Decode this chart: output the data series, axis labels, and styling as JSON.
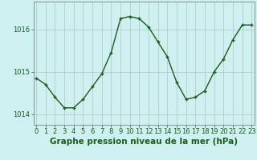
{
  "x": [
    0,
    1,
    2,
    3,
    4,
    5,
    6,
    7,
    8,
    9,
    10,
    11,
    12,
    13,
    14,
    15,
    16,
    17,
    18,
    19,
    20,
    21,
    22,
    23
  ],
  "y": [
    1014.85,
    1014.7,
    1014.4,
    1014.15,
    1014.15,
    1014.35,
    1014.65,
    1014.95,
    1015.45,
    1016.25,
    1016.3,
    1016.25,
    1016.05,
    1015.7,
    1015.35,
    1014.75,
    1014.35,
    1014.4,
    1014.55,
    1015.0,
    1015.3,
    1015.75,
    1016.1,
    1016.1
  ],
  "line_color": "#1a5c1a",
  "marker": "+",
  "marker_size": 3,
  "marker_lw": 1.0,
  "line_width": 1.0,
  "bg_color": "#cff0f0",
  "grid_color": "#b0cccc",
  "axis_color": "#808080",
  "ylim": [
    1013.75,
    1016.65
  ],
  "xlim": [
    -0.3,
    23.3
  ],
  "yticks": [
    1014,
    1015,
    1016
  ],
  "ytick_labels": [
    "1014",
    "1015",
    "1016"
  ],
  "xtick_labels": [
    "0",
    "1",
    "2",
    "3",
    "4",
    "5",
    "6",
    "7",
    "8",
    "9",
    "10",
    "11",
    "12",
    "13",
    "14",
    "15",
    "16",
    "17",
    "18",
    "19",
    "20",
    "21",
    "22",
    "23"
  ],
  "xlabel": "Graphe pression niveau de la mer (hPa)",
  "xlabel_fontsize": 7.5,
  "xlabel_color": "#1a5c1a",
  "tick_fontsize": 6.0,
  "tick_color": "#1a5c1a"
}
